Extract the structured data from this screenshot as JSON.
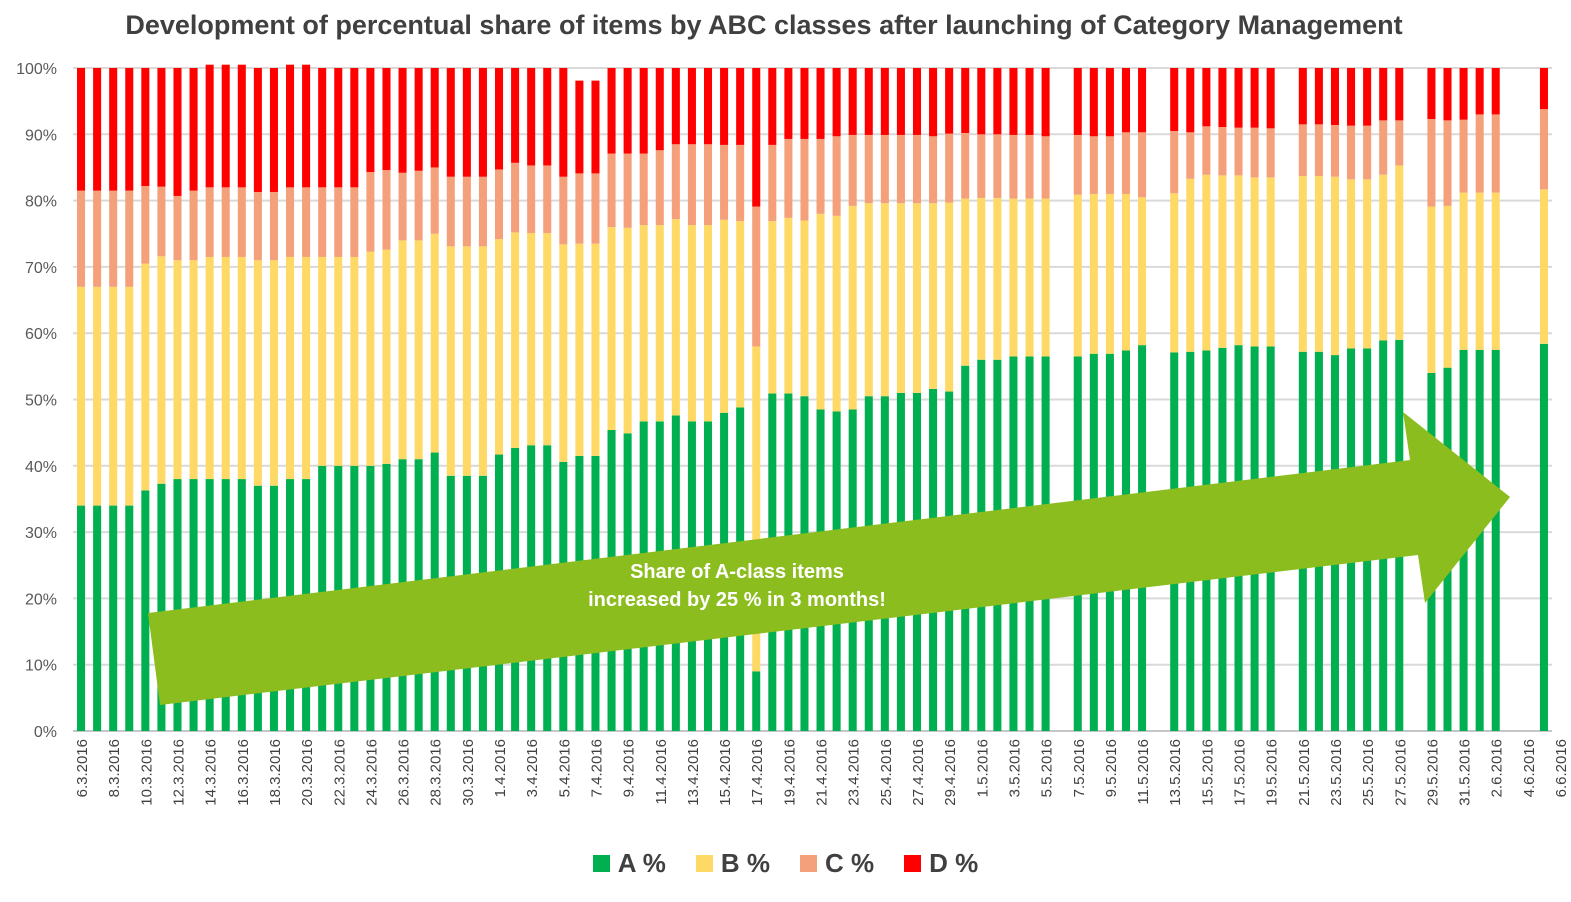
{
  "chart_data": {
    "type": "bar",
    "stacked": true,
    "title": "Development of percentual share of items by ABC classes after launching of Category Management",
    "xlabel": "",
    "ylabel": "",
    "ylim": [
      0,
      100
    ],
    "y_ticks": [
      "0%",
      "10%",
      "20%",
      "30%",
      "40%",
      "50%",
      "60%",
      "70%",
      "80%",
      "90%",
      "100%"
    ],
    "x_tick_labels": [
      "6.3.2016",
      "8.3.2016",
      "10.3.2016",
      "12.3.2016",
      "14.3.2016",
      "16.3.2016",
      "18.3.2016",
      "20.3.2016",
      "22.3.2016",
      "24.3.2016",
      "26.3.2016",
      "28.3.2016",
      "30.3.2016",
      "1.4.2016",
      "3.4.2016",
      "5.4.2016",
      "7.4.2016",
      "9.4.2016",
      "11.4.2016",
      "13.4.2016",
      "15.4.2016",
      "17.4.2016",
      "19.4.2016",
      "21.4.2016",
      "23.4.2016",
      "25.4.2016",
      "27.4.2016",
      "29.4.2016",
      "1.5.2016",
      "3.5.2016",
      "5.5.2016",
      "7.5.2016",
      "9.5.2016",
      "11.5.2016",
      "13.5.2016",
      "15.5.2016",
      "17.5.2016",
      "19.5.2016",
      "21.5.2016",
      "23.5.2016",
      "25.5.2016",
      "27.5.2016",
      "29.5.2016",
      "31.5.2016",
      "2.6.2016",
      "4.6.2016",
      "6.6.2016"
    ],
    "grid": true,
    "legend_position": "bottom",
    "colors": {
      "A": "#00b050",
      "B": "#ffd966",
      "C": "#f4a07a",
      "D": "#ff0000",
      "grid": "#d9d9d9",
      "arrow": "#8cbd1f"
    },
    "series_names": [
      "A %",
      "B %",
      "C %",
      "D %"
    ],
    "A": [
      34,
      34,
      34,
      34,
      36.3,
      37.3,
      38,
      38,
      38,
      38,
      38,
      37,
      37,
      38,
      38,
      40,
      40,
      40,
      40,
      40.3,
      41,
      41,
      42,
      38.5,
      38.5,
      38.5,
      41.7,
      42.7,
      43.1,
      43.1,
      40.6,
      41.5,
      41.5,
      45.4,
      44.9,
      46.7,
      46.7,
      47.6,
      46.7,
      46.7,
      48,
      48.8,
      9,
      50.9,
      50.9,
      50.5,
      48.5,
      48.2,
      48.5,
      50.5,
      50.5,
      51,
      51,
      51.6,
      51.2,
      55.1,
      56,
      56,
      56.5,
      56.5,
      56.5,
      null,
      56.5,
      56.9,
      56.9,
      57.4,
      58.2,
      null,
      57.1,
      57.2,
      57.4,
      57.8,
      58.2,
      58,
      58,
      null,
      57.2,
      57.2,
      56.7,
      57.7,
      57.7,
      58.9,
      59,
      null,
      54,
      54.8,
      57.5,
      57.5,
      57.5,
      null,
      null,
      58.4
    ],
    "B": [
      33,
      33,
      33,
      33,
      34.2,
      34.3,
      33,
      33,
      33.5,
      33.5,
      33.5,
      34,
      34,
      33.5,
      33.5,
      31.5,
      31.5,
      31.5,
      32.3,
      32.3,
      33,
      33,
      33,
      34.6,
      34.6,
      34.6,
      32.5,
      32.5,
      32,
      32,
      32.8,
      32,
      32,
      30.6,
      31,
      29.6,
      29.6,
      29.6,
      29.6,
      29.6,
      29.1,
      28.1,
      49,
      26,
      26.5,
      26.5,
      29.5,
      29.5,
      30.7,
      29.1,
      29.1,
      28.6,
      28.6,
      28,
      28.5,
      25.2,
      24.4,
      24.4,
      23.8,
      23.8,
      23.8,
      null,
      24.4,
      24.1,
      24.1,
      23.6,
      22.3,
      null,
      24,
      26.1,
      26.5,
      26,
      25.6,
      25.5,
      25.5,
      null,
      26.5,
      26.5,
      26.9,
      25.5,
      25.5,
      25,
      26.3,
      null,
      25.1,
      24.4,
      23.7,
      23.7,
      23.7,
      null,
      null,
      23.3
    ],
    "C": [
      14.5,
      14.5,
      14.5,
      14.5,
      11.7,
      10.5,
      9.7,
      10.5,
      10.5,
      10.5,
      10.5,
      10.3,
      10.3,
      10.5,
      10.5,
      10.5,
      10.5,
      10.5,
      12,
      12,
      10.2,
      10.5,
      10,
      10.5,
      10.5,
      10.5,
      10.5,
      10.5,
      10.2,
      10.2,
      10.2,
      10.6,
      10.6,
      11.1,
      11.2,
      10.8,
      11.3,
      11.3,
      12.2,
      12.2,
      11.3,
      11.5,
      21.1,
      11.5,
      11.9,
      12.3,
      11.3,
      12,
      10.7,
      10.3,
      10.3,
      10.3,
      10.3,
      10.1,
      10.4,
      9.9,
      9.6,
      9.6,
      9.6,
      9.6,
      9.4,
      null,
      9,
      8.7,
      8.7,
      9.3,
      9.8,
      null,
      9.4,
      7,
      7.3,
      7.3,
      7.2,
      7.5,
      7.4,
      null,
      7.8,
      7.8,
      7.8,
      8.1,
      8.1,
      8.2,
      6.8,
      null,
      13.2,
      12.9,
      11,
      11.8,
      11.8,
      null,
      null,
      12.1
    ],
    "D": [
      18.5,
      18.5,
      18.5,
      18.5,
      17.8,
      17.9,
      19.3,
      18.5,
      18.5,
      18.5,
      18.5,
      18.7,
      18.7,
      18.5,
      18.5,
      18,
      18,
      18,
      15.7,
      15.4,
      15.8,
      15.5,
      15,
      16.4,
      16.4,
      16.4,
      15.3,
      14.3,
      14.7,
      14.7,
      16.4,
      14,
      14,
      12.9,
      12.9,
      12.9,
      12.4,
      11.5,
      11.5,
      11.5,
      11.6,
      11.6,
      20.9,
      11.6,
      10.7,
      10.7,
      10.7,
      10.3,
      10.1,
      10.1,
      10.1,
      10.1,
      10.1,
      10.3,
      9.9,
      9.8,
      10,
      10,
      10.1,
      10.1,
      10.3,
      null,
      10.1,
      10.3,
      10.3,
      9.7,
      9.7,
      null,
      9.5,
      9.7,
      8.8,
      8.9,
      9,
      9,
      9.1,
      null,
      8.5,
      8.5,
      8.6,
      8.7,
      8.7,
      7.9,
      7.9,
      null,
      7.7,
      7.9,
      7.8,
      7,
      7,
      null,
      null,
      6.2
    ],
    "annotation": "Share of A-class items increased by 25 % in 3 months!"
  },
  "annotation_lines": [
    "Share of A-class items",
    "increased by 25 % in 3 months!"
  ],
  "legend": [
    {
      "key": "A",
      "label": "A %"
    },
    {
      "key": "B",
      "label": "B %"
    },
    {
      "key": "C",
      "label": "C %"
    },
    {
      "key": "D",
      "label": "D %"
    }
  ]
}
